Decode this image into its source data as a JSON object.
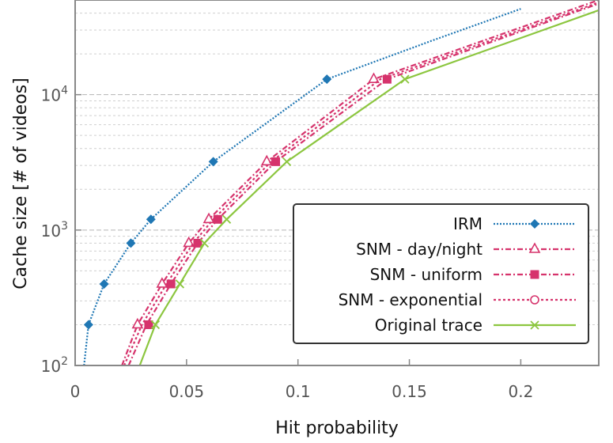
{
  "chart_data": {
    "type": "line",
    "xlabel": "Hit probability",
    "ylabel": "Cache size [# of videos]",
    "xlim": [
      0,
      0.235
    ],
    "ylim": [
      100,
      50000
    ],
    "y_scale": "log",
    "grid": true,
    "legend_position": "bottom-right",
    "x_ticks": [
      {
        "value": 0,
        "label": "0"
      },
      {
        "value": 0.05,
        "label": "0.05"
      },
      {
        "value": 0.1,
        "label": "0.1"
      },
      {
        "value": 0.15,
        "label": "0.15"
      },
      {
        "value": 0.2,
        "label": "0.2"
      }
    ],
    "y_ticks": [
      {
        "value": 100,
        "base": "10",
        "exp": "2"
      },
      {
        "value": 1000,
        "base": "10",
        "exp": "3"
      },
      {
        "value": 10000,
        "base": "10",
        "exp": "4"
      }
    ],
    "series": [
      {
        "name": "IRM",
        "color": "#1f77b4",
        "dash": "2,2",
        "marker": "diamond",
        "points": [
          [
            0.004,
            100
          ],
          [
            0.006,
            200
          ],
          [
            0.013,
            400
          ],
          [
            0.025,
            800
          ],
          [
            0.034,
            1200
          ],
          [
            0.062,
            3200
          ],
          [
            0.113,
            13000
          ],
          [
            0.16,
            25000
          ],
          [
            0.2,
            43000
          ]
        ],
        "marker_points": [
          [
            0.006,
            200
          ],
          [
            0.013,
            400
          ],
          [
            0.025,
            800
          ],
          [
            0.034,
            1200
          ],
          [
            0.062,
            3200
          ],
          [
            0.113,
            13000
          ]
        ]
      },
      {
        "name": "SNM - day/night",
        "color": "#d6336c",
        "dash": "7,3,2,3",
        "marker": "triangle-open",
        "points": [
          [
            0.021,
            100
          ],
          [
            0.028,
            200
          ],
          [
            0.039,
            400
          ],
          [
            0.051,
            800
          ],
          [
            0.06,
            1200
          ],
          [
            0.086,
            3200
          ],
          [
            0.134,
            13000
          ],
          [
            0.235,
            50000
          ]
        ],
        "marker_points": [
          [
            0.028,
            200
          ],
          [
            0.039,
            400
          ],
          [
            0.051,
            800
          ],
          [
            0.06,
            1200
          ],
          [
            0.086,
            3200
          ],
          [
            0.134,
            13000
          ]
        ]
      },
      {
        "name": "SNM - uniform",
        "color": "#d6336c",
        "dash": "7,3,2,3",
        "marker": "square-filled",
        "points": [
          [
            0.024,
            100
          ],
          [
            0.032,
            200
          ],
          [
            0.043,
            400
          ],
          [
            0.055,
            800
          ],
          [
            0.064,
            1200
          ],
          [
            0.09,
            3200
          ],
          [
            0.14,
            13000
          ],
          [
            0.235,
            47000
          ]
        ],
        "marker_points": [
          [
            0.033,
            200
          ],
          [
            0.043,
            400
          ],
          [
            0.055,
            800
          ],
          [
            0.064,
            1200
          ],
          [
            0.09,
            3200
          ],
          [
            0.14,
            13000
          ]
        ]
      },
      {
        "name": "SNM - exponential",
        "color": "#d6336c",
        "dash": "3,3",
        "marker": "circle-open",
        "points": [
          [
            0.022,
            100
          ],
          [
            0.03,
            200
          ],
          [
            0.041,
            400
          ],
          [
            0.053,
            800
          ],
          [
            0.062,
            1200
          ],
          [
            0.088,
            3200
          ],
          [
            0.137,
            13000
          ],
          [
            0.235,
            48000
          ]
        ],
        "marker_points": []
      },
      {
        "name": "Original trace",
        "color": "#8cc63f",
        "dash": "",
        "marker": "x",
        "points": [
          [
            0.029,
            100
          ],
          [
            0.036,
            200
          ],
          [
            0.047,
            400
          ],
          [
            0.058,
            800
          ],
          [
            0.068,
            1200
          ],
          [
            0.095,
            3200
          ],
          [
            0.148,
            13000
          ],
          [
            0.235,
            42000
          ]
        ],
        "marker_points": [
          [
            0.036,
            200
          ],
          [
            0.047,
            400
          ],
          [
            0.058,
            800
          ],
          [
            0.068,
            1200
          ],
          [
            0.095,
            3200
          ],
          [
            0.148,
            13000
          ]
        ]
      }
    ]
  }
}
